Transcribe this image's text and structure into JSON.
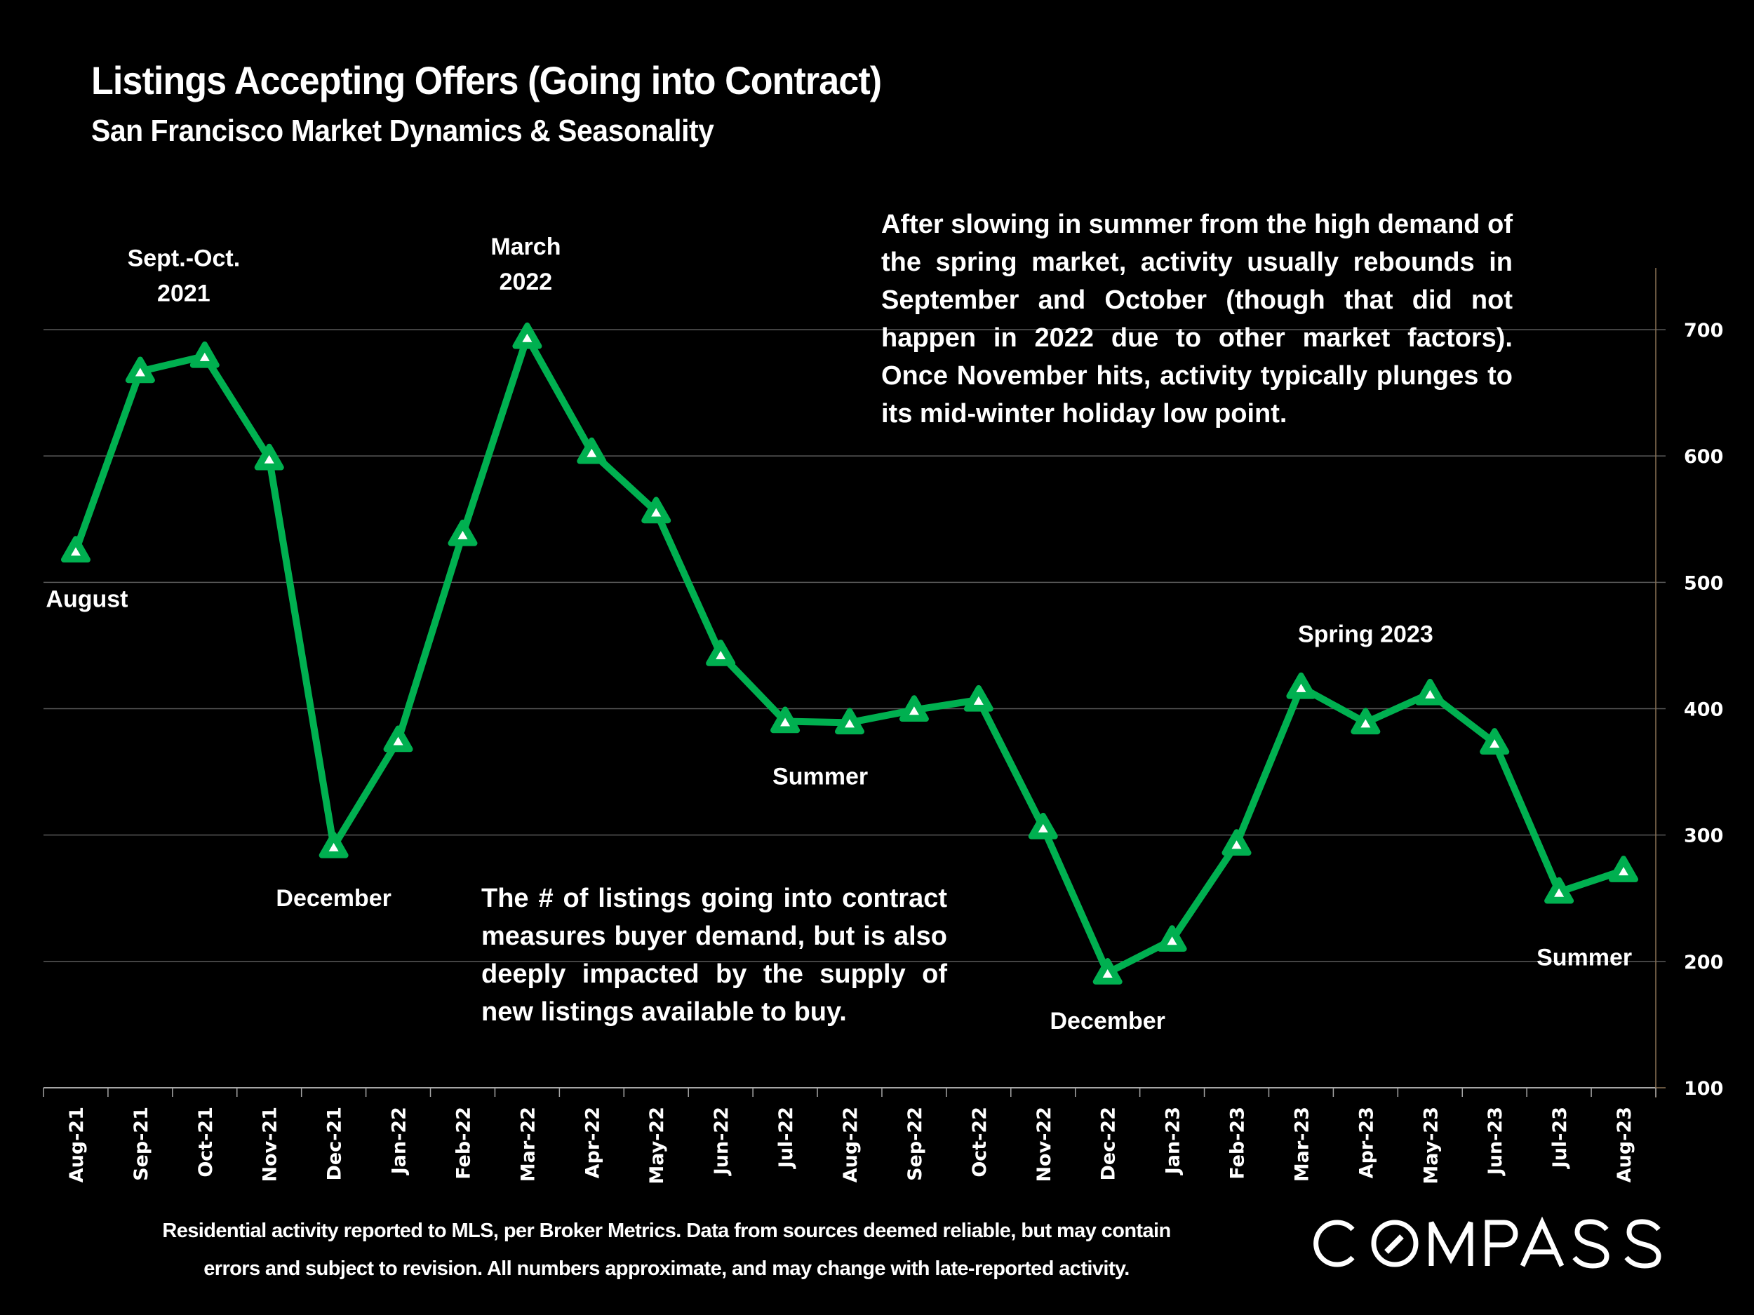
{
  "header": {
    "title": "Listings Accepting Offers (Going into Contract)",
    "subtitle": "San Francisco Market Dynamics & Seasonality"
  },
  "notes": {
    "top": "After slowing in summer from the high demand of the spring market, activity usually rebounds in September and October (though that did not happen in 2022 due to other market factors). Once November hits, activity typically plunges to its mid-winter holiday low point.",
    "bottom": "The # of listings going into contract measures buyer demand, but is also deeply impacted by the supply of new listings available to buy."
  },
  "footer": {
    "line1": "Residential activity reported to MLS, per Broker Metrics. Data from sources deemed reliable, but may contain",
    "line2": "errors and subject to revision. All numbers approximate, and may change with late-reported activity."
  },
  "brand": {
    "logo_text": "COMPASS"
  },
  "colors": {
    "background": "#000000",
    "line": "#00B050",
    "marker_fill": "#FFFFFF",
    "gridline": "#595959",
    "right_axis": "#8B7355",
    "text": "#FFFFFF"
  },
  "chart_data": {
    "type": "line",
    "title": "Listings Accepting Offers (Going into Contract)",
    "subtitle": "San Francisco Market Dynamics & Seasonality",
    "xlabel": "",
    "ylabel": "",
    "categories": [
      "Aug-21",
      "Sep-21",
      "Oct-21",
      "Nov-21",
      "Dec-21",
      "Jan-22",
      "Feb-22",
      "Mar-22",
      "Apr-22",
      "May-22",
      "Jun-22",
      "Jul-22",
      "Aug-22",
      "Sep-22",
      "Oct-22",
      "Nov-22",
      "Dec-22",
      "Jan-23",
      "Feb-23",
      "Mar-23",
      "Apr-23",
      "May-23",
      "Jun-23",
      "Jul-23",
      "Aug-23"
    ],
    "series": [
      {
        "name": "Listings Accepting Offers",
        "marker": "triangle",
        "values": [
          525,
          667,
          679,
          598,
          291,
          375,
          538,
          694,
          603,
          556,
          443,
          390,
          389,
          399,
          407,
          306,
          191,
          217,
          293,
          417,
          389,
          412,
          373,
          255,
          272
        ]
      }
    ],
    "ylim": [
      100,
      700
    ],
    "y_ticks": [
      100,
      200,
      300,
      400,
      500,
      600,
      700
    ],
    "y_axis_side": "right",
    "grid": true,
    "legend": "none",
    "annotations": [
      {
        "text": [
          "August"
        ],
        "category": "Aug-21",
        "position": "below"
      },
      {
        "text": [
          "Sept.-Oct.",
          "2021"
        ],
        "category": "Sep-21",
        "position": "above"
      },
      {
        "text": [
          "December"
        ],
        "category": "Dec-21",
        "position": "below"
      },
      {
        "text": [
          "March",
          "2022"
        ],
        "category": "Mar-22",
        "position": "above"
      },
      {
        "text": [
          "Summer"
        ],
        "category": "Jul-22",
        "position": "below"
      },
      {
        "text": [
          "December"
        ],
        "category": "Dec-22",
        "position": "below"
      },
      {
        "text": [
          "Spring 2023"
        ],
        "category": "Apr-23",
        "position": "above"
      },
      {
        "text": [
          "Summer"
        ],
        "category": "Jul-23",
        "position": "below"
      }
    ]
  }
}
